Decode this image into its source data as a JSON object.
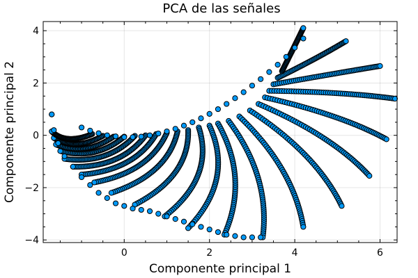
{
  "chart_data": {
    "type": "scatter",
    "title": "PCA de las señales",
    "xlabel": "Componente principal 1",
    "ylabel": "Componente principal 2",
    "xlim": [
      -1.9,
      6.4
    ],
    "ylim": [
      -4.1,
      4.35
    ],
    "xticks": [
      0,
      2,
      4,
      6
    ],
    "yticks": [
      -4,
      -2,
      0,
      2,
      4
    ],
    "xtick_labels": [
      "0",
      "2",
      "4",
      "6"
    ],
    "ytick_labels": [
      "−4",
      "−2",
      "0",
      "2",
      "4"
    ],
    "grid": true,
    "legend": "none",
    "marker_color": "#009AFA",
    "marker_edge_color": "#000000",
    "series": [
      {
        "x": [
          -1.7,
          -1.0,
          -0.8,
          -0.6,
          -0.4,
          -0.2,
          0.0,
          0.2,
          0.4,
          0.6,
          0.8,
          1.0,
          1.2,
          1.4,
          1.6,
          1.8,
          2.0,
          2.2,
          2.4,
          2.6,
          2.8,
          3.0,
          3.2,
          3.4,
          3.6,
          3.8,
          4.0,
          4.2
        ],
        "y": [
          0.8,
          0.3,
          0.18,
          0.08,
          0.0,
          -0.04,
          -0.07,
          -0.07,
          -0.05,
          0.0,
          0.07,
          0.15,
          0.25,
          0.37,
          0.5,
          0.65,
          0.82,
          1.0,
          1.2,
          1.42,
          1.65,
          1.9,
          2.15,
          2.42,
          2.7,
          3.0,
          3.35,
          3.7
        ]
      },
      {
        "name_hidden": "",
        "x": [
          -1.7,
          -1.65,
          -1.55,
          -1.4,
          -1.2,
          -1.0,
          -0.8,
          -0.6,
          -0.4,
          -0.2,
          0.0,
          0.2,
          0.4,
          0.6,
          0.8,
          1.0,
          1.2,
          1.4,
          1.6,
          1.8,
          2.0,
          2.2,
          2.4,
          2.6,
          2.8,
          3.0,
          3.2
        ],
        "y": [
          0.8,
          0.2,
          -0.3,
          -0.8,
          -1.2,
          -1.6,
          -1.9,
          -2.2,
          -2.4,
          -2.6,
          -2.7,
          -2.8,
          -2.85,
          -2.9,
          -3.0,
          -3.1,
          -3.2,
          -3.3,
          -3.4,
          -3.5,
          -3.6,
          -3.7,
          -3.8,
          -3.85,
          -3.9,
          -3.9,
          -3.9
        ]
      }
    ],
    "curves": [
      {
        "start": [
          2.0,
          0.37
        ],
        "end": [
          1.5,
          -3.55
        ],
        "bend": 0.9
      },
      {
        "start": [
          2.2,
          0.45
        ],
        "end": [
          2.35,
          -3.8
        ],
        "bend": 0.6
      },
      {
        "start": [
          2.45,
          0.55
        ],
        "end": [
          3.25,
          -3.9
        ],
        "bend": 0.45
      },
      {
        "start": [
          2.7,
          0.72
        ],
        "end": [
          4.2,
          -3.5
        ],
        "bend": 0.35
      },
      {
        "start": [
          2.95,
          0.95
        ],
        "end": [
          5.1,
          -2.7
        ],
        "bend": 0.3
      },
      {
        "start": [
          3.15,
          1.2
        ],
        "end": [
          5.75,
          -1.55
        ],
        "bend": 0.25
      },
      {
        "start": [
          3.3,
          1.45
        ],
        "end": [
          6.15,
          -0.15
        ],
        "bend": 0.2
      },
      {
        "start": [
          3.4,
          1.7
        ],
        "end": [
          6.35,
          1.4
        ],
        "bend": 0.15
      },
      {
        "start": [
          3.5,
          1.95
        ],
        "end": [
          6.0,
          2.65
        ],
        "bend": 0.12
      },
      {
        "start": [
          3.6,
          2.2
        ],
        "end": [
          5.2,
          3.6
        ],
        "bend": 0.1
      },
      {
        "start": [
          3.7,
          2.45
        ],
        "end": [
          4.2,
          4.1
        ],
        "bend": 0.1
      },
      {
        "start": [
          1.75,
          0.3
        ],
        "end": [
          0.95,
          -3.1
        ],
        "bend": 1.0
      },
      {
        "start": [
          1.5,
          0.2
        ],
        "end": [
          0.25,
          -2.65
        ],
        "bend": 1.1
      },
      {
        "start": [
          1.25,
          0.15
        ],
        "end": [
          -0.3,
          -2.2
        ],
        "bend": 1.2
      },
      {
        "start": [
          1.0,
          0.1
        ],
        "end": [
          -0.7,
          -1.8
        ],
        "bend": 1.3
      },
      {
        "start": [
          0.75,
          0.05
        ],
        "end": [
          -1.0,
          -1.5
        ],
        "bend": 1.4
      },
      {
        "start": [
          0.5,
          0.0
        ],
        "end": [
          -1.2,
          -1.2
        ],
        "bend": 1.5
      },
      {
        "start": [
          0.25,
          -0.02
        ],
        "end": [
          -1.4,
          -0.9
        ],
        "bend": 1.6
      },
      {
        "start": [
          0.0,
          -0.05
        ],
        "end": [
          -1.5,
          -0.6
        ],
        "bend": 1.7
      },
      {
        "start": [
          -0.25,
          -0.05
        ],
        "end": [
          -1.6,
          -0.35
        ],
        "bend": 1.8
      },
      {
        "start": [
          -0.5,
          -0.02
        ],
        "end": [
          -1.65,
          -0.1
        ],
        "bend": 1.9
      },
      {
        "start": [
          -0.75,
          0.05
        ],
        "end": [
          -1.7,
          0.15
        ],
        "bend": 2.0
      }
    ]
  }
}
